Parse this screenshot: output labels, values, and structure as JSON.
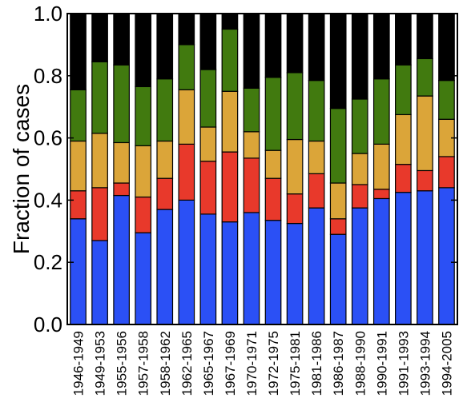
{
  "chart_data": {
    "type": "bar",
    "stacked": true,
    "title": "",
    "xlabel": "",
    "ylabel": "Fraction of cases",
    "ylim": [
      0.0,
      1.0
    ],
    "yticks": [
      "0.0",
      "0.2",
      "0.4",
      "0.6",
      "0.8",
      "1.0"
    ],
    "grid": false,
    "legend": "none",
    "categories": [
      "1946-1949",
      "1949-1953",
      "1955-1956",
      "1957-1958",
      "1958-1962",
      "1962-1965",
      "1965-1967",
      "1967-1969",
      "1970-1971",
      "1972-1975",
      "1975-1981",
      "1981-1986",
      "1986-1987",
      "1988-1990",
      "1990-1991",
      "1991-1993",
      "1993-1994",
      "1994-2005"
    ],
    "series": [
      {
        "color": "#2b50f5",
        "values": [
          0.34,
          0.27,
          0.415,
          0.295,
          0.37,
          0.4,
          0.355,
          0.33,
          0.36,
          0.335,
          0.325,
          0.375,
          0.29,
          0.375,
          0.405,
          0.425,
          0.43,
          0.44
        ]
      },
      {
        "color": "#e8392b",
        "values": [
          0.09,
          0.17,
          0.04,
          0.115,
          0.1,
          0.18,
          0.17,
          0.225,
          0.175,
          0.135,
          0.095,
          0.11,
          0.05,
          0.075,
          0.03,
          0.09,
          0.065,
          0.1
        ]
      },
      {
        "color": "#dba539",
        "values": [
          0.16,
          0.175,
          0.13,
          0.165,
          0.12,
          0.175,
          0.11,
          0.195,
          0.085,
          0.09,
          0.175,
          0.105,
          0.115,
          0.1,
          0.145,
          0.16,
          0.24,
          0.12
        ]
      },
      {
        "color": "#417a0f",
        "values": [
          0.165,
          0.23,
          0.25,
          0.19,
          0.2,
          0.145,
          0.185,
          0.2,
          0.14,
          0.235,
          0.215,
          0.195,
          0.24,
          0.175,
          0.21,
          0.16,
          0.12,
          0.125
        ]
      },
      {
        "color": "#000000",
        "values": [
          0.245,
          0.155,
          0.165,
          0.235,
          0.21,
          0.1,
          0.18,
          0.05,
          0.24,
          0.205,
          0.19,
          0.215,
          0.305,
          0.275,
          0.21,
          0.165,
          0.145,
          0.215
        ]
      }
    ]
  }
}
